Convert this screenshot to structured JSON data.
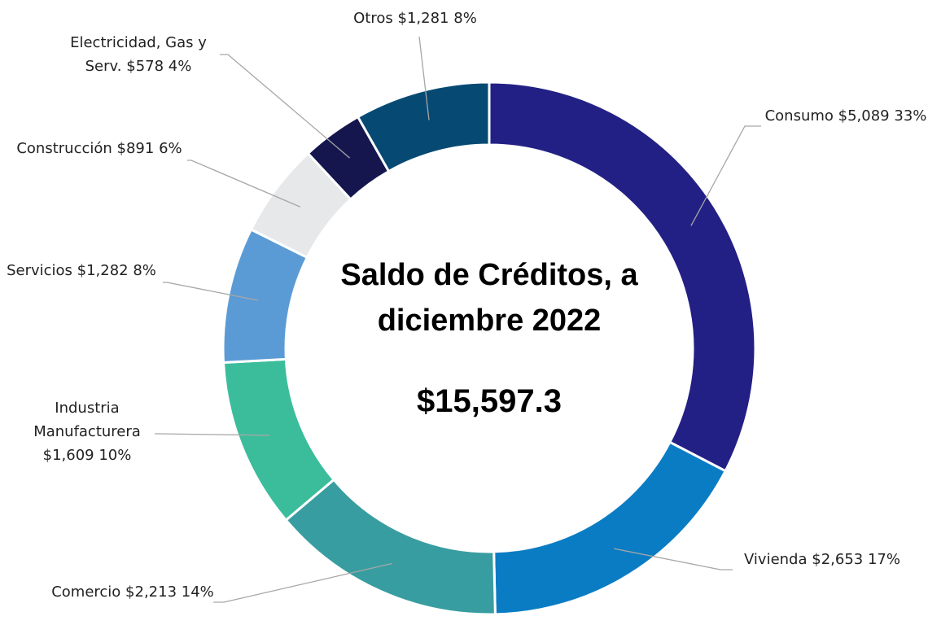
{
  "chart_data": {
    "type": "donut",
    "title": "Saldo de Créditos, a diciembre 2022",
    "total": {
      "value": 15597.3,
      "label": "$15,597.3"
    },
    "categories": [
      "Consumo",
      "Vivienda",
      "Comercio",
      "Industria Manufacturera",
      "Servicios",
      "Construcción",
      "Electricidad, Gas y Serv.",
      "Otros"
    ],
    "values": [
      5089,
      2653,
      2213,
      1609,
      1282,
      891,
      578,
      1281
    ],
    "value_labels": [
      "$5,089",
      "$2,653",
      "$2,213",
      "$1,609",
      "$1,282",
      "$891",
      "$578",
      "$1,281"
    ],
    "percents": [
      33,
      17,
      14,
      10,
      8,
      6,
      4,
      8
    ],
    "percent_labels": [
      "33%",
      "17%",
      "14%",
      "10%",
      "8%",
      "6%",
      "4%",
      "8%"
    ],
    "colors": [
      "#232085",
      "#0a7cc4",
      "#389da0",
      "#3bbd9c",
      "#5b9bd5",
      "#e7e8ea",
      "#16164f",
      "#064a73"
    ]
  }
}
